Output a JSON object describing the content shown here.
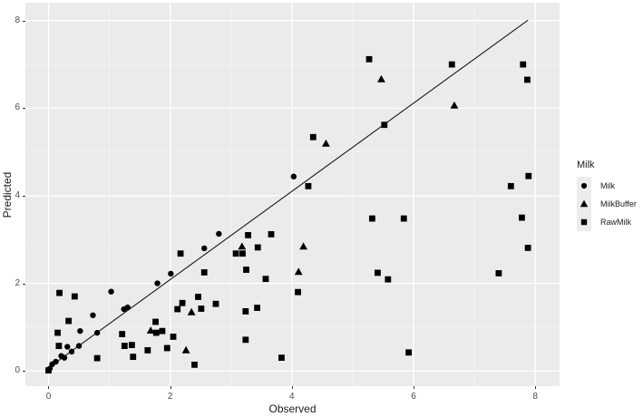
{
  "figure": {
    "xlabel": "Observed",
    "ylabel": "Predicted",
    "legend": {
      "title": "Milk",
      "items": [
        {
          "label": "Milk",
          "marker": "circle"
        },
        {
          "label": "MilkBuffer",
          "marker": "triangle"
        },
        {
          "label": "RawMilk",
          "marker": "square"
        }
      ]
    }
  },
  "chart_data": {
    "type": "scatter",
    "title": "",
    "xlabel": "Observed",
    "ylabel": "Predicted",
    "xlim": [
      -0.38,
      8.4
    ],
    "ylim": [
      -0.35,
      8.41
    ],
    "x_major_ticks": [
      0,
      2,
      4,
      6,
      8
    ],
    "y_major_ticks": [
      0,
      2,
      4,
      6,
      8
    ],
    "x_minor_ticks": [
      1,
      3,
      5,
      7
    ],
    "y_minor_ticks": [
      1,
      3,
      5,
      7
    ],
    "grid": true,
    "legend_position": "right",
    "identity_line": {
      "x1": -0.05,
      "y1": 0.02,
      "x2": 7.88,
      "y2": 8.01
    },
    "colors": {
      "panel_bg": "#EBEBEB",
      "grid_major": "#FFFFFF",
      "grid_minor": "#F4F4F4",
      "point": "#000000",
      "line": "#1A1A1A",
      "tick_label": "#4D4D4D",
      "axis_title": "#1A1A1A"
    },
    "series": [
      {
        "name": "Milk",
        "marker": "circle",
        "points": [
          [
            0.02,
            0.05
          ],
          [
            0.06,
            0.15
          ],
          [
            0.12,
            0.21
          ],
          [
            0.21,
            0.34
          ],
          [
            0.26,
            0.3
          ],
          [
            0.38,
            0.44
          ],
          [
            0.31,
            0.55
          ],
          [
            0.5,
            0.57
          ],
          [
            0.52,
            0.91
          ],
          [
            0.73,
            1.27
          ],
          [
            0.8,
            0.87
          ],
          [
            1.03,
            1.81
          ],
          [
            1.24,
            1.41
          ],
          [
            1.3,
            1.45
          ],
          [
            1.79,
            2.0
          ],
          [
            2.01,
            2.22
          ],
          [
            2.56,
            2.8
          ],
          [
            2.8,
            3.13
          ],
          [
            4.03,
            4.44
          ]
        ]
      },
      {
        "name": "MilkBuffer",
        "marker": "triangle",
        "points": [
          [
            1.68,
            0.92
          ],
          [
            2.26,
            0.47
          ],
          [
            2.35,
            1.34
          ],
          [
            3.18,
            2.84
          ],
          [
            4.11,
            2.26
          ],
          [
            4.19,
            2.84
          ],
          [
            4.56,
            5.19
          ],
          [
            5.47,
            6.66
          ],
          [
            6.67,
            6.06
          ]
        ]
      },
      {
        "name": "RawMilk",
        "marker": "square",
        "points": [
          [
            0.0,
            0.01
          ],
          [
            0.18,
            1.78
          ],
          [
            0.43,
            1.7
          ],
          [
            0.15,
            0.87
          ],
          [
            0.17,
            0.57
          ],
          [
            0.33,
            1.14
          ],
          [
            0.8,
            0.29
          ],
          [
            1.21,
            0.84
          ],
          [
            1.25,
            0.57
          ],
          [
            1.37,
            0.59
          ],
          [
            1.39,
            0.32
          ],
          [
            1.63,
            0.47
          ],
          [
            1.76,
            1.12
          ],
          [
            1.77,
            0.87
          ],
          [
            1.87,
            0.91
          ],
          [
            1.95,
            0.52
          ],
          [
            2.05,
            0.78
          ],
          [
            2.12,
            1.41
          ],
          [
            2.17,
            2.68
          ],
          [
            2.2,
            1.55
          ],
          [
            2.4,
            0.14
          ],
          [
            2.46,
            1.69
          ],
          [
            2.51,
            1.42
          ],
          [
            2.56,
            2.25
          ],
          [
            2.75,
            1.53
          ],
          [
            3.08,
            2.68
          ],
          [
            3.19,
            2.68
          ],
          [
            3.24,
            0.71
          ],
          [
            3.24,
            1.36
          ],
          [
            3.25,
            2.31
          ],
          [
            3.28,
            3.1
          ],
          [
            3.43,
            1.44
          ],
          [
            3.44,
            2.82
          ],
          [
            3.57,
            2.1
          ],
          [
            3.66,
            3.12
          ],
          [
            3.83,
            0.3
          ],
          [
            4.1,
            1.8
          ],
          [
            4.27,
            4.22
          ],
          [
            4.35,
            5.34
          ],
          [
            5.27,
            7.12
          ],
          [
            5.32,
            3.48
          ],
          [
            5.41,
            2.24
          ],
          [
            5.52,
            5.62
          ],
          [
            5.58,
            2.09
          ],
          [
            5.84,
            3.48
          ],
          [
            5.92,
            0.42
          ],
          [
            6.63,
            7.0
          ],
          [
            7.4,
            2.23
          ],
          [
            7.6,
            4.22
          ],
          [
            7.78,
            3.5
          ],
          [
            7.8,
            7.0
          ],
          [
            7.87,
            6.65
          ],
          [
            7.88,
            2.81
          ],
          [
            7.89,
            4.45
          ]
        ]
      }
    ]
  }
}
